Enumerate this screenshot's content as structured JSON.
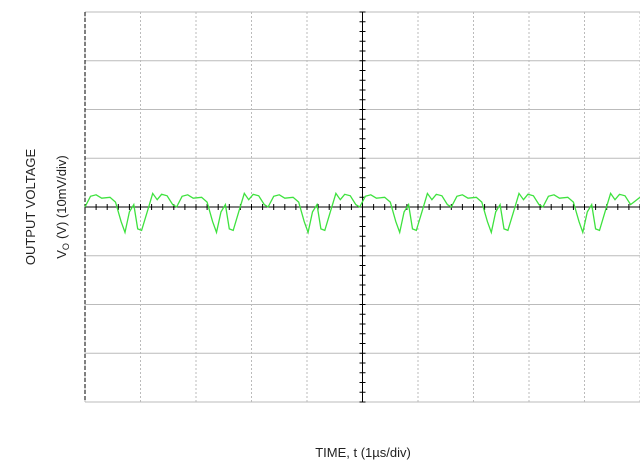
{
  "chart_data": {
    "type": "line",
    "y_label_line1": "OUTPUT VOLTAGE",
    "y_label_symbol": "V",
    "y_label_subscript": "O",
    "y_label_unit": "(V) (10mV/div)",
    "x_label": "TIME, t (1µs/div)",
    "xlim": [
      0,
      10
    ],
    "ylim": [
      -40,
      40
    ],
    "xticks": [
      0,
      1,
      2,
      3,
      4,
      5,
      6,
      7,
      8,
      9,
      10
    ],
    "yticks": [
      -40,
      -30,
      -20,
      -10,
      0,
      10,
      20,
      30,
      40
    ],
    "grid": true,
    "series": [
      {
        "color": "#3ee23e",
        "x": [
          0,
          0.1,
          0.2,
          0.3,
          0.45,
          0.55,
          0.65,
          0.72,
          0.8,
          0.88,
          0.95,
          1.02,
          1.12,
          1.22,
          1.3,
          1.38,
          1.48,
          1.58,
          1.65,
          1.75,
          1.85,
          1.95,
          2.1,
          2.2,
          2.3,
          2.37,
          2.45,
          2.53,
          2.6,
          2.67,
          2.77,
          2.87,
          2.95,
          3.03,
          3.13,
          3.23,
          3.3,
          3.4,
          3.5,
          3.6,
          3.75,
          3.85,
          3.95,
          4.02,
          4.1,
          4.18,
          4.25,
          4.32,
          4.42,
          4.52,
          4.6,
          4.68,
          4.78,
          4.88,
          4.95,
          5.05,
          5.15,
          5.25,
          5.4,
          5.5,
          5.6,
          5.67,
          5.75,
          5.83,
          5.9,
          5.97,
          6.07,
          6.17,
          6.25,
          6.33,
          6.43,
          6.53,
          6.6,
          6.7,
          6.8,
          6.9,
          7.05,
          7.15,
          7.25,
          7.32,
          7.4,
          7.48,
          7.55,
          7.62,
          7.72,
          7.82,
          7.9,
          7.98,
          8.08,
          8.18,
          8.25,
          8.35,
          8.45,
          8.55,
          8.7,
          8.8,
          8.9,
          8.97,
          9.05,
          9.13,
          9.2,
          9.27,
          9.37,
          9.47,
          9.55,
          9.63,
          9.73,
          9.83,
          10
        ],
        "values": [
          0,
          2.2,
          2.5,
          1.8,
          2.0,
          1.0,
          -3,
          -5.2,
          -1,
          0.5,
          -4.5,
          -4.8,
          -1,
          2.8,
          1.5,
          2.6,
          2.3,
          0.5,
          0,
          2.2,
          2.5,
          1.8,
          2.0,
          1.0,
          -3,
          -5.2,
          -1,
          0.5,
          -4.5,
          -4.8,
          -1,
          2.8,
          1.5,
          2.6,
          2.3,
          0.5,
          0,
          2.2,
          2.5,
          1.8,
          2.0,
          1.0,
          -3,
          -5.2,
          -1,
          0.5,
          -4.5,
          -4.8,
          -1,
          2.8,
          1.5,
          2.6,
          2.3,
          0.5,
          0,
          2.2,
          2.5,
          1.8,
          2.0,
          1.0,
          -3,
          -5.2,
          -1,
          0.5,
          -4.5,
          -4.8,
          -1,
          2.8,
          1.5,
          2.6,
          2.3,
          0.5,
          0,
          2.2,
          2.5,
          1.8,
          2.0,
          1.0,
          -3,
          -5.2,
          -1,
          0.5,
          -4.5,
          -4.8,
          -1,
          2.8,
          1.5,
          2.6,
          2.3,
          0.5,
          0,
          2.2,
          2.5,
          1.8,
          2.0,
          1.0,
          -3,
          -5.2,
          -1,
          0.5,
          -4.5,
          -4.8,
          -1,
          2.8,
          1.5,
          2.6,
          2.3,
          0.5,
          2.0
        ]
      }
    ]
  }
}
